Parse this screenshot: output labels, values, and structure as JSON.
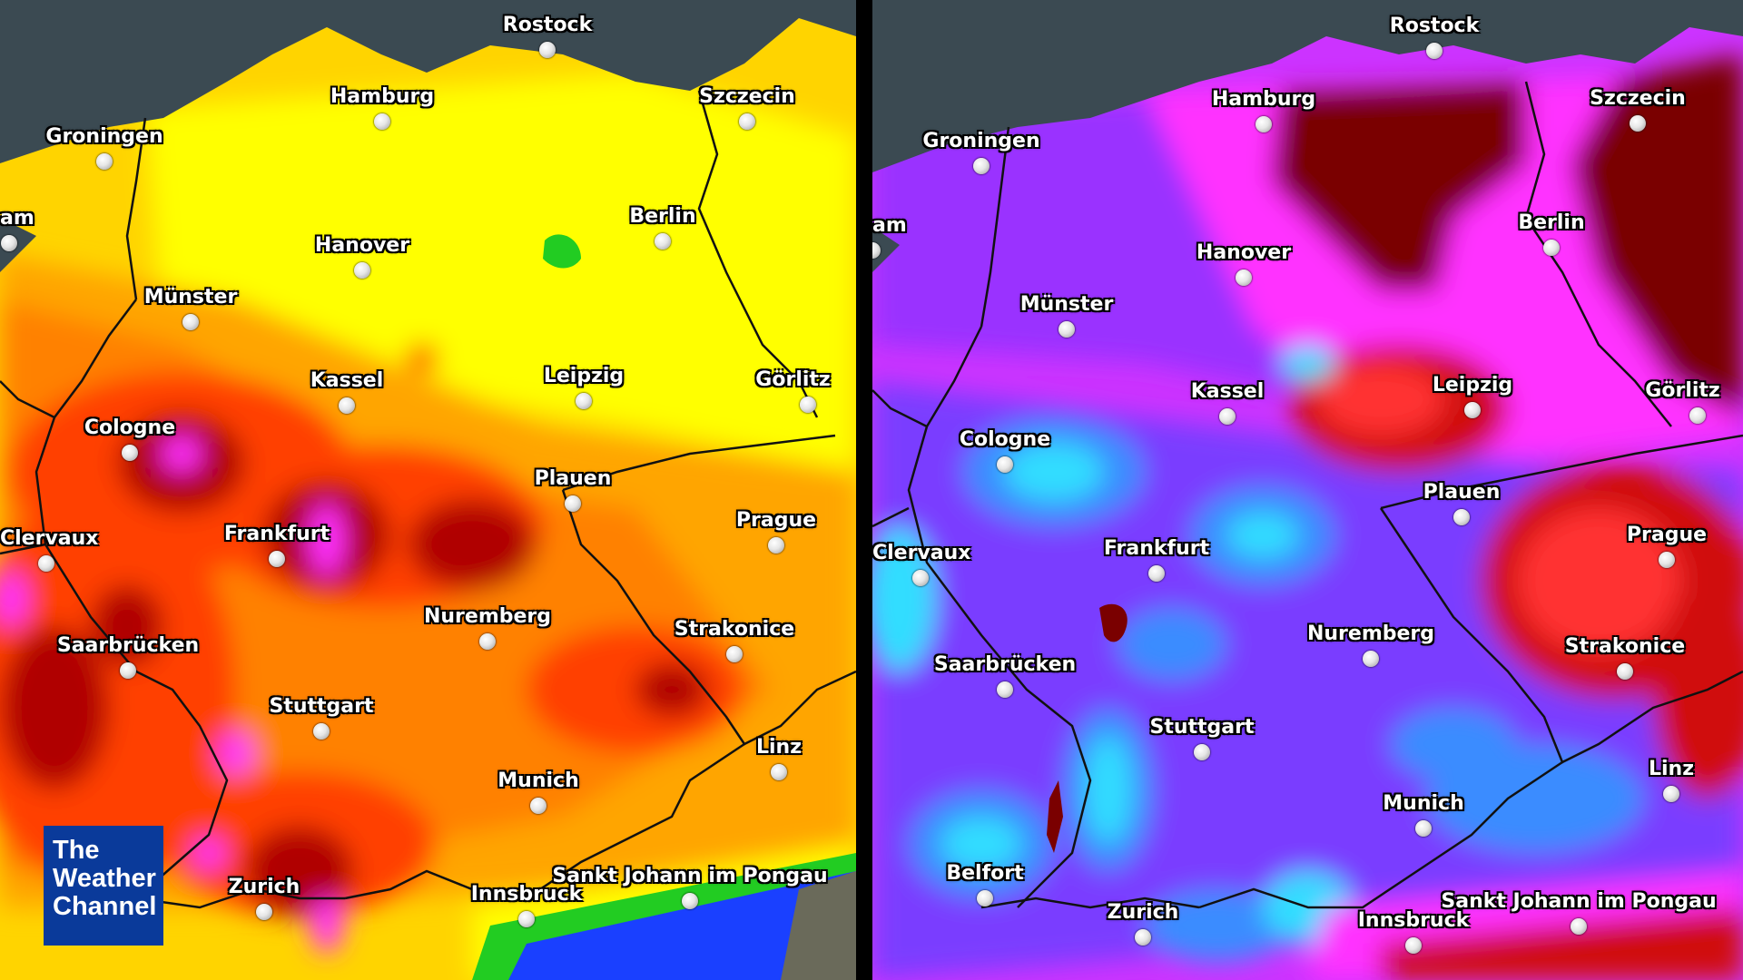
{
  "brand": {
    "logo_lines": [
      "The",
      "Weather",
      "Channel"
    ],
    "color": "#0a3a9a"
  },
  "panels": [
    {
      "id": "left",
      "palette": [
        "#ffff00",
        "#ffd400",
        "#ffa500",
        "#ff7a00",
        "#ff4000",
        "#e01000",
        "#b00000",
        "#ff33ff",
        "#22cc22",
        "#1a40ff"
      ],
      "cities": [
        {
          "name": "Rostock"
        },
        {
          "name": "Hamburg"
        },
        {
          "name": "Szczecin"
        },
        {
          "name": "Groningen"
        },
        {
          "name": "am"
        },
        {
          "name": "Berlin"
        },
        {
          "name": "Hanover"
        },
        {
          "name": "Münster"
        },
        {
          "name": "Kassel"
        },
        {
          "name": "Leipzig"
        },
        {
          "name": "Görlitz"
        },
        {
          "name": "Cologne"
        },
        {
          "name": "Plauen"
        },
        {
          "name": "Prague"
        },
        {
          "name": "Clervaux"
        },
        {
          "name": "Frankfurt"
        },
        {
          "name": "Nuremberg"
        },
        {
          "name": "Strakonice"
        },
        {
          "name": "Saarbrücken"
        },
        {
          "name": "Stuttgart"
        },
        {
          "name": "Linz"
        },
        {
          "name": "Munich"
        },
        {
          "name": "Zurich"
        },
        {
          "name": "Innsbruck"
        },
        {
          "name": "Sankt Johann im Pongau"
        }
      ]
    },
    {
      "id": "right",
      "palette": [
        "#ff33ff",
        "#cc33ff",
        "#9a30ff",
        "#7a3cff",
        "#3a8cff",
        "#33ddff",
        "#7a0000",
        "#d01010",
        "#ff3030",
        "#ffa000"
      ],
      "cities": [
        {
          "name": "Rostock"
        },
        {
          "name": "Hamburg"
        },
        {
          "name": "Szczecin"
        },
        {
          "name": "Groningen"
        },
        {
          "name": "am"
        },
        {
          "name": "Berlin"
        },
        {
          "name": "Hanover"
        },
        {
          "name": "Münster"
        },
        {
          "name": "Kassel"
        },
        {
          "name": "Leipzig"
        },
        {
          "name": "Görlitz"
        },
        {
          "name": "Cologne"
        },
        {
          "name": "Plauen"
        },
        {
          "name": "Prague"
        },
        {
          "name": "Clervaux"
        },
        {
          "name": "Frankfurt"
        },
        {
          "name": "Nuremberg"
        },
        {
          "name": "Strakonice"
        },
        {
          "name": "Saarbrücken"
        },
        {
          "name": "Stuttgart"
        },
        {
          "name": "Linz"
        },
        {
          "name": "Munich"
        },
        {
          "name": "Belfort"
        },
        {
          "name": "Zurich"
        },
        {
          "name": "Innsbruck"
        },
        {
          "name": "Sankt Johann im Pongau"
        }
      ]
    }
  ]
}
